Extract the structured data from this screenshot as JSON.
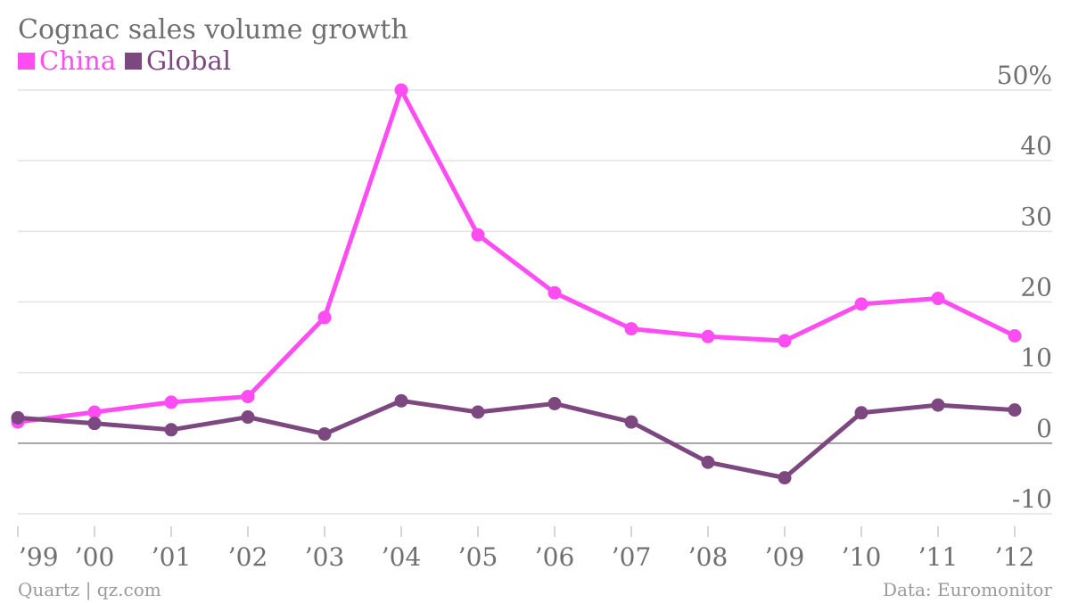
{
  "colors": {
    "china": "#ff4cf3",
    "global": "#7d4880",
    "text": "#6f6f6f",
    "footer": "#9a9a9a"
  },
  "footer": {
    "source_left": "Quartz | qz.com",
    "source_right": "Data: Euromonitor"
  },
  "chart_data": {
    "type": "line",
    "title": "Cognac sales volume growth",
    "categories": [
      "’99",
      "’00",
      "’01",
      "’02",
      "’03",
      "’04",
      "’05",
      "’06",
      "’07",
      "’08",
      "’09",
      "’10",
      "’11",
      "’12"
    ],
    "series": [
      {
        "name": "China",
        "color": "#ff4cf3",
        "values": [
          3.0,
          4.4,
          5.8,
          6.6,
          17.8,
          50.0,
          29.5,
          21.3,
          16.2,
          15.1,
          14.5,
          19.7,
          20.5,
          15.2
        ]
      },
      {
        "name": "Global",
        "color": "#7d4880",
        "values": [
          3.6,
          2.8,
          1.9,
          3.7,
          1.3,
          6.0,
          4.4,
          5.6,
          3.0,
          -2.7,
          -4.9,
          4.3,
          5.4,
          4.7
        ]
      }
    ],
    "y_ticks": [
      {
        "value": 50,
        "label": "50%"
      },
      {
        "value": 40,
        "label": "40"
      },
      {
        "value": 30,
        "label": "30"
      },
      {
        "value": 20,
        "label": "20"
      },
      {
        "value": 10,
        "label": "10"
      },
      {
        "value": 0,
        "label": "0"
      },
      {
        "value": -10,
        "label": "-10"
      }
    ],
    "ylim": [
      -10,
      50
    ],
    "grid": true,
    "legend_position": "top-left",
    "xlabel": "",
    "ylabel": ""
  }
}
